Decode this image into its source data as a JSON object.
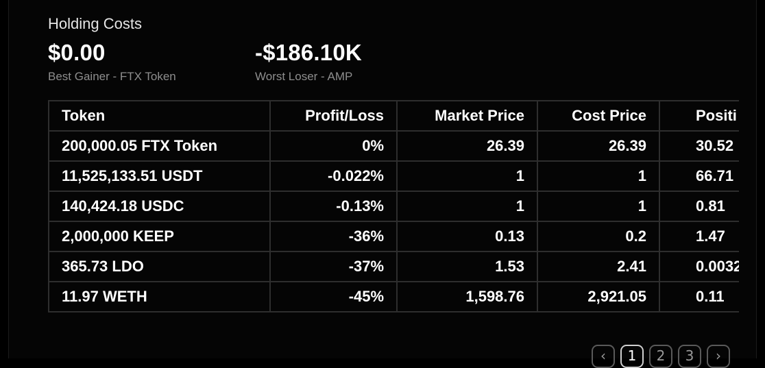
{
  "header": {
    "title": "Holding Costs"
  },
  "best": {
    "value": "$0.00",
    "caption": "Best Gainer - FTX Token"
  },
  "worst": {
    "value": "-$186.10K",
    "caption": "Worst Loser - AMP"
  },
  "table": {
    "columns": [
      "Token",
      "Profit/Loss",
      "Market Price",
      "Cost Price",
      "Positi"
    ],
    "rows": [
      [
        "200,000.05 FTX Token",
        "0%",
        "26.39",
        "26.39",
        "30.52"
      ],
      [
        "11,525,133.51 USDT",
        "-0.022%",
        "1",
        "1",
        "66.71"
      ],
      [
        "140,424.18 USDC",
        "-0.13%",
        "1",
        "1",
        "0.81"
      ],
      [
        "2,000,000 KEEP",
        "-36%",
        "0.13",
        "0.2",
        "1.47"
      ],
      [
        "365.73 LDO",
        "-37%",
        "1.53",
        "2.41",
        "0.0032"
      ],
      [
        "11.97 WETH",
        "-45%",
        "1,598.76",
        "2,921.05",
        "0.11"
      ]
    ]
  },
  "pagination": {
    "prev_icon": "chevron-left-icon",
    "next_icon": "chevron-right-icon",
    "prev": "‹",
    "next": "›",
    "pages": [
      "1",
      "2",
      "3"
    ],
    "current": "1"
  }
}
